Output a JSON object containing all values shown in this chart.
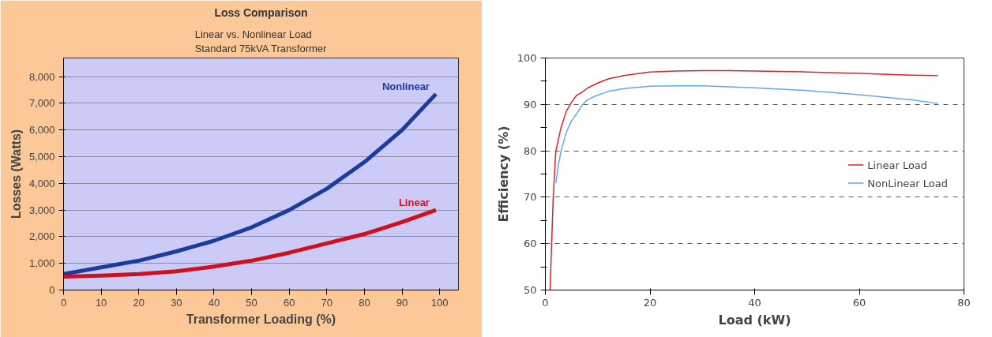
{
  "chart_data": [
    {
      "type": "line",
      "title": "Loss Comparison",
      "subtitle": "Linear vs. Nonlinear Load\nStandard 75kVA Transformer",
      "xlabel": "Transformer Loading (%)",
      "ylabel": "Losses (Watts)",
      "x": [
        0,
        10,
        20,
        30,
        40,
        50,
        60,
        70,
        80,
        90,
        99
      ],
      "series": [
        {
          "name": "Nonlinear",
          "color": "#1a3c9c",
          "values": [
            600,
            850,
            1100,
            1450,
            1850,
            2350,
            3000,
            3800,
            4800,
            6000,
            7350
          ]
        },
        {
          "name": "Linear",
          "color": "#d0101c",
          "values": [
            500,
            540,
            600,
            700,
            880,
            1100,
            1400,
            1750,
            2100,
            2550,
            3000
          ]
        }
      ],
      "xlim": [
        0,
        105
      ],
      "ylim": [
        0,
        8700
      ],
      "xticks": [
        0,
        10,
        20,
        30,
        40,
        50,
        60,
        70,
        80,
        90,
        100
      ],
      "yticks": [
        0,
        {
          "value": 1000,
          "label": "1,000"
        },
        {
          "value": 2000,
          "label": "2,000"
        },
        {
          "value": 3000,
          "label": "3,000"
        },
        {
          "value": 4000,
          "label": "4,000"
        },
        {
          "value": 5000,
          "label": "5,000"
        },
        {
          "value": 6000,
          "label": "6,000"
        },
        {
          "value": 7000,
          "label": "7,000"
        },
        {
          "value": 8000,
          "label": "8,000"
        }
      ],
      "grid": "y",
      "legend": false
    },
    {
      "type": "line",
      "xlabel": "Load (kW)",
      "ylabel": "Efficiency (%)",
      "series": [
        {
          "name": "Linear Load",
          "color": "#e0202c",
          "x": [
            0.9,
            1.2,
            1.5,
            2,
            3,
            4,
            5,
            6,
            7,
            8,
            10,
            12,
            15,
            18,
            20,
            25,
            30,
            35,
            40,
            50,
            60,
            70,
            75
          ],
          "values": [
            50,
            60,
            70,
            80,
            85,
            88.5,
            90.5,
            92,
            92.6,
            93.5,
            94.6,
            95.5,
            96.2,
            96.7,
            97,
            97.2,
            97.3,
            97.3,
            97.2,
            97,
            96.7,
            96.3,
            96.2
          ]
        },
        {
          "name": "NonLinear Load",
          "color": "#5fa8f5",
          "x": [
            2,
            2.5,
            3,
            4,
            5,
            6,
            7,
            8,
            10,
            12,
            15,
            20,
            25,
            30,
            40,
            50,
            60,
            70,
            75
          ],
          "values": [
            73,
            77,
            80,
            84,
            86.5,
            88,
            89.8,
            91,
            92,
            92.8,
            93.4,
            93.9,
            94,
            94,
            93.6,
            93,
            92.1,
            91,
            90.2
          ]
        }
      ],
      "xlim": [
        0,
        80
      ],
      "ylim": [
        50,
        100
      ],
      "xticks": [
        0,
        20,
        40,
        60,
        80
      ],
      "yticks": [
        50,
        {
          "value": 55,
          "label": null
        },
        60,
        {
          "value": 65,
          "label": null
        },
        70,
        {
          "value": 75,
          "label": null
        },
        80,
        {
          "value": 85,
          "label": null
        },
        90,
        {
          "value": 95,
          "label": null
        },
        100
      ],
      "grid": "y",
      "legend": "right"
    }
  ]
}
